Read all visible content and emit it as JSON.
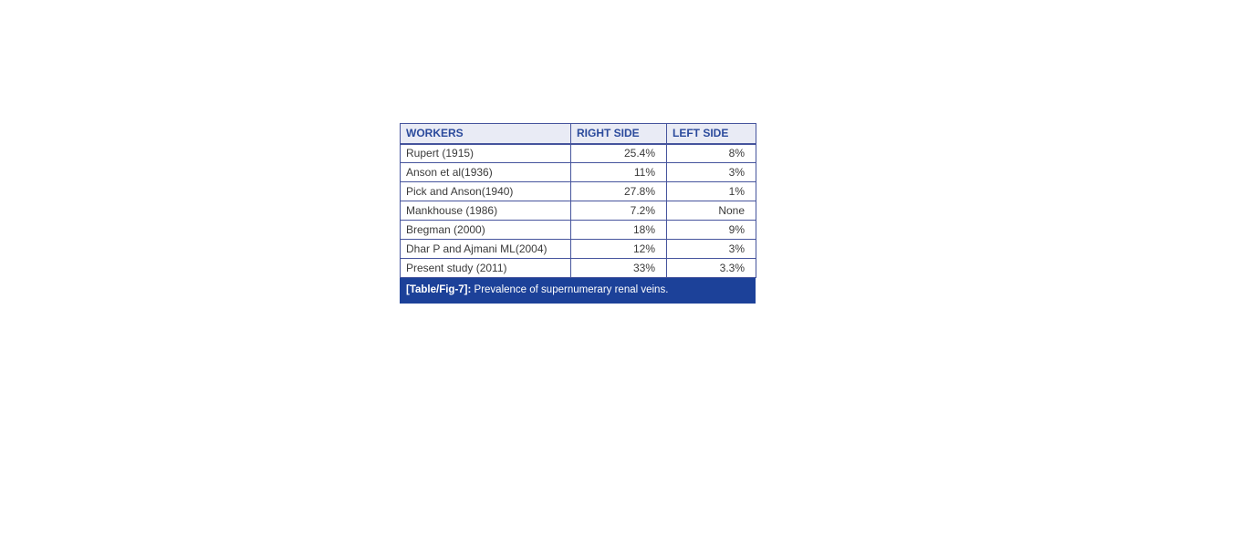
{
  "table": {
    "headers": [
      "WORKERS",
      "RIGHT SIDE",
      "LEFT SIDE"
    ],
    "rows": [
      [
        "Rupert (1915)",
        "25.4%",
        "8%"
      ],
      [
        "Anson et al(1936)",
        "11%",
        "3%"
      ],
      [
        "Pick and Anson(1940)",
        "27.8%",
        "1%"
      ],
      [
        "Mankhouse (1986)",
        "7.2%",
        "None"
      ],
      [
        "Bregman (2000)",
        "18%",
        "9%"
      ],
      [
        "Dhar P and Ajmani ML(2004)",
        "12%",
        "3%"
      ],
      [
        "Present study (2011)",
        "33%",
        "3.3%"
      ]
    ],
    "caption_label": "[Table/Fig-7]:",
    "caption_text": " Prevalence of supernumerary renal veins."
  },
  "colors": {
    "header_text": "#2b4a9c",
    "header_bg": "#e9ebf5",
    "border": "#46549d",
    "body_text": "#3a3a3a",
    "caption_bg": "#1c4199",
    "caption_text": "#ffffff"
  },
  "chart_data": {
    "type": "table",
    "title": "[Table/Fig-7]: Prevalence of supernumerary renal veins.",
    "columns": [
      "WORKERS",
      "RIGHT SIDE",
      "LEFT SIDE"
    ],
    "rows": [
      [
        "Rupert (1915)",
        "25.4%",
        "8%"
      ],
      [
        "Anson et al(1936)",
        "11%",
        "3%"
      ],
      [
        "Pick and Anson(1940)",
        "27.8%",
        "1%"
      ],
      [
        "Mankhouse (1986)",
        "7.2%",
        "None"
      ],
      [
        "Bregman (2000)",
        "18%",
        "9%"
      ],
      [
        "Dhar P and Ajmani ML(2004)",
        "12%",
        "3%"
      ],
      [
        "Present study (2011)",
        "33%",
        "3.3%"
      ]
    ]
  }
}
